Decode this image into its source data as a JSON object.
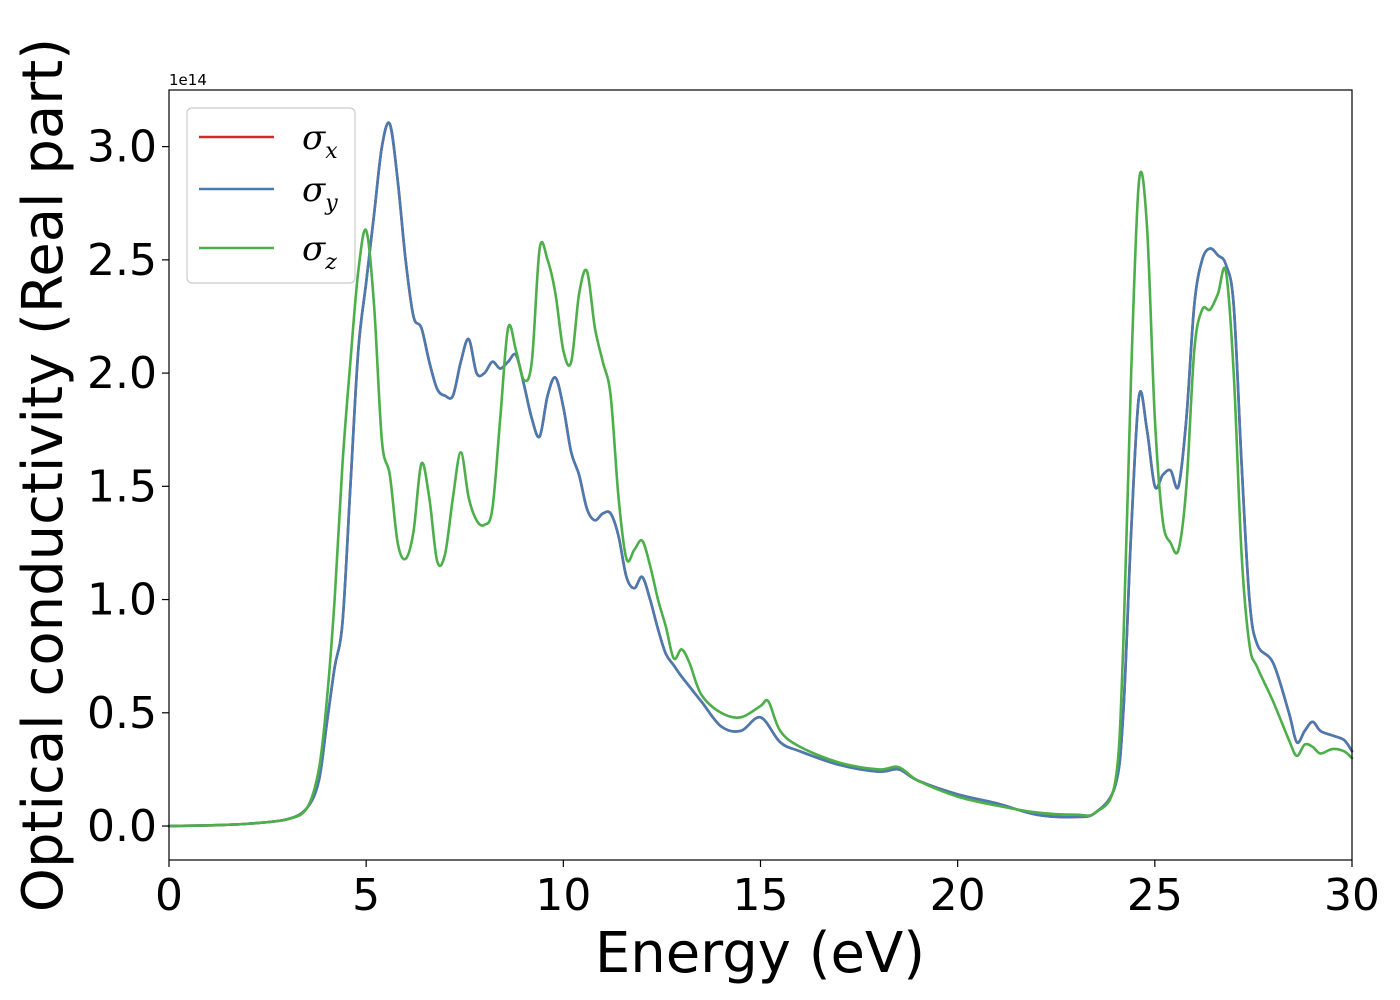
{
  "chart_data": {
    "type": "line",
    "title": "",
    "xlabel": "Energy (eV)",
    "ylabel": "Optical conductivity (Real part)",
    "y_offset_label": "1e14",
    "xlim": [
      0,
      30
    ],
    "ylim": [
      -0.15,
      3.25
    ],
    "xticks": [
      0,
      5,
      10,
      15,
      20,
      25,
      30
    ],
    "xtick_labels": [
      "0",
      "5",
      "10",
      "15",
      "20",
      "25",
      "30"
    ],
    "yticks": [
      0.0,
      0.5,
      1.0,
      1.5,
      2.0,
      2.5,
      3.0
    ],
    "ytick_labels": [
      "0.0",
      "0.5",
      "1.0",
      "1.5",
      "2.0",
      "2.5",
      "3.0"
    ],
    "legend_position": "upper-left",
    "grid": false,
    "series": [
      {
        "name": "σx",
        "symbol": "σ",
        "subscript": "x",
        "color": "#d62728",
        "x": [
          0,
          1,
          2,
          3,
          3.5,
          3.8,
          4.0,
          4.2,
          4.4,
          4.6,
          4.8,
          5.0,
          5.2,
          5.4,
          5.6,
          5.8,
          6.0,
          6.2,
          6.4,
          6.6,
          6.8,
          7.0,
          7.2,
          7.4,
          7.6,
          7.8,
          8.0,
          8.2,
          8.4,
          8.6,
          8.8,
          9.0,
          9.2,
          9.4,
          9.6,
          9.8,
          10.0,
          10.2,
          10.4,
          10.6,
          10.8,
          11.0,
          11.2,
          11.4,
          11.6,
          11.8,
          12.0,
          12.2,
          12.4,
          12.6,
          12.8,
          13.0,
          13.5,
          14.0,
          14.5,
          15.0,
          15.5,
          16.0,
          17.0,
          18.0,
          18.5,
          19.0,
          20.0,
          21.0,
          22.0,
          23.0,
          23.5,
          24.0,
          24.2,
          24.4,
          24.6,
          24.8,
          25.0,
          25.2,
          25.4,
          25.6,
          25.8,
          26.0,
          26.2,
          26.4,
          26.6,
          26.8,
          27.0,
          27.2,
          27.4,
          27.6,
          28.0,
          28.4,
          28.6,
          28.8,
          29.0,
          29.2,
          29.5,
          29.8,
          30.0
        ],
        "values": [
          0,
          0.003,
          0.01,
          0.03,
          0.08,
          0.2,
          0.45,
          0.7,
          0.9,
          1.5,
          2.1,
          2.4,
          2.7,
          3.0,
          3.1,
          2.85,
          2.5,
          2.25,
          2.2,
          2.05,
          1.93,
          1.9,
          1.9,
          2.05,
          2.15,
          2.0,
          2.0,
          2.05,
          2.02,
          2.05,
          2.08,
          1.95,
          1.8,
          1.72,
          1.9,
          1.98,
          1.85,
          1.65,
          1.55,
          1.4,
          1.35,
          1.38,
          1.38,
          1.28,
          1.1,
          1.05,
          1.1,
          1.0,
          0.87,
          0.76,
          0.71,
          0.66,
          0.55,
          0.44,
          0.42,
          0.48,
          0.37,
          0.33,
          0.27,
          0.24,
          0.25,
          0.2,
          0.14,
          0.1,
          0.05,
          0.04,
          0.06,
          0.18,
          0.5,
          1.3,
          1.9,
          1.75,
          1.5,
          1.55,
          1.57,
          1.5,
          1.8,
          2.3,
          2.5,
          2.55,
          2.52,
          2.48,
          2.3,
          1.6,
          1.0,
          0.8,
          0.72,
          0.5,
          0.37,
          0.42,
          0.46,
          0.42,
          0.4,
          0.38,
          0.33
        ]
      },
      {
        "name": "σy",
        "symbol": "σ",
        "subscript": "y",
        "color": "#4a7bb0",
        "x": [
          0,
          1,
          2,
          3,
          3.5,
          3.8,
          4.0,
          4.2,
          4.4,
          4.6,
          4.8,
          5.0,
          5.2,
          5.4,
          5.6,
          5.8,
          6.0,
          6.2,
          6.4,
          6.6,
          6.8,
          7.0,
          7.2,
          7.4,
          7.6,
          7.8,
          8.0,
          8.2,
          8.4,
          8.6,
          8.8,
          9.0,
          9.2,
          9.4,
          9.6,
          9.8,
          10.0,
          10.2,
          10.4,
          10.6,
          10.8,
          11.0,
          11.2,
          11.4,
          11.6,
          11.8,
          12.0,
          12.2,
          12.4,
          12.6,
          12.8,
          13.0,
          13.5,
          14.0,
          14.5,
          15.0,
          15.5,
          16.0,
          17.0,
          18.0,
          18.5,
          19.0,
          20.0,
          21.0,
          22.0,
          23.0,
          23.5,
          24.0,
          24.2,
          24.4,
          24.6,
          24.8,
          25.0,
          25.2,
          25.4,
          25.6,
          25.8,
          26.0,
          26.2,
          26.4,
          26.6,
          26.8,
          27.0,
          27.2,
          27.4,
          27.6,
          28.0,
          28.4,
          28.6,
          28.8,
          29.0,
          29.2,
          29.5,
          29.8,
          30.0
        ],
        "values": [
          0,
          0.003,
          0.01,
          0.03,
          0.08,
          0.2,
          0.45,
          0.7,
          0.9,
          1.5,
          2.1,
          2.4,
          2.7,
          3.0,
          3.1,
          2.85,
          2.5,
          2.25,
          2.2,
          2.05,
          1.93,
          1.9,
          1.9,
          2.05,
          2.15,
          2.0,
          2.0,
          2.05,
          2.02,
          2.05,
          2.08,
          1.95,
          1.8,
          1.72,
          1.9,
          1.98,
          1.85,
          1.65,
          1.55,
          1.4,
          1.35,
          1.38,
          1.38,
          1.28,
          1.1,
          1.05,
          1.1,
          1.0,
          0.87,
          0.76,
          0.71,
          0.66,
          0.55,
          0.44,
          0.42,
          0.48,
          0.37,
          0.33,
          0.27,
          0.24,
          0.25,
          0.2,
          0.14,
          0.1,
          0.05,
          0.04,
          0.06,
          0.18,
          0.5,
          1.3,
          1.9,
          1.75,
          1.5,
          1.55,
          1.57,
          1.5,
          1.8,
          2.3,
          2.5,
          2.55,
          2.52,
          2.48,
          2.3,
          1.6,
          1.0,
          0.8,
          0.72,
          0.5,
          0.37,
          0.42,
          0.46,
          0.42,
          0.4,
          0.38,
          0.33
        ]
      },
      {
        "name": "σz",
        "symbol": "σ",
        "subscript": "z",
        "color": "#4daf4a",
        "x": [
          0,
          1,
          2,
          3,
          3.5,
          3.8,
          4.0,
          4.2,
          4.4,
          4.6,
          4.8,
          5.0,
          5.2,
          5.4,
          5.6,
          5.8,
          6.0,
          6.2,
          6.4,
          6.6,
          6.8,
          7.0,
          7.2,
          7.4,
          7.6,
          7.8,
          8.0,
          8.2,
          8.4,
          8.6,
          8.8,
          9.0,
          9.2,
          9.4,
          9.6,
          9.8,
          10.0,
          10.2,
          10.4,
          10.6,
          10.8,
          11.0,
          11.2,
          11.4,
          11.6,
          11.8,
          12.0,
          12.2,
          12.4,
          12.6,
          12.8,
          13.0,
          13.2,
          13.5,
          14.0,
          14.5,
          15.0,
          15.2,
          15.5,
          16.0,
          17.0,
          18.0,
          18.5,
          19.0,
          20.0,
          21.0,
          22.0,
          23.0,
          23.5,
          24.0,
          24.2,
          24.4,
          24.6,
          24.8,
          25.0,
          25.2,
          25.4,
          25.6,
          25.8,
          26.0,
          26.2,
          26.4,
          26.6,
          26.8,
          27.0,
          27.2,
          27.4,
          27.6,
          28.0,
          28.4,
          28.6,
          28.8,
          29.0,
          29.2,
          29.5,
          29.8,
          30.0
        ],
        "values": [
          0,
          0.003,
          0.01,
          0.03,
          0.08,
          0.25,
          0.55,
          1.0,
          1.6,
          2.05,
          2.45,
          2.63,
          2.3,
          1.7,
          1.55,
          1.25,
          1.18,
          1.3,
          1.6,
          1.45,
          1.17,
          1.2,
          1.45,
          1.65,
          1.45,
          1.35,
          1.33,
          1.4,
          1.8,
          2.2,
          2.1,
          1.97,
          2.05,
          2.55,
          2.5,
          2.35,
          2.1,
          2.05,
          2.35,
          2.45,
          2.2,
          2.05,
          1.9,
          1.45,
          1.18,
          1.22,
          1.26,
          1.15,
          1.0,
          0.88,
          0.74,
          0.78,
          0.72,
          0.58,
          0.5,
          0.48,
          0.53,
          0.55,
          0.42,
          0.35,
          0.28,
          0.25,
          0.26,
          0.2,
          0.13,
          0.09,
          0.06,
          0.05,
          0.06,
          0.2,
          0.8,
          2.0,
          2.85,
          2.65,
          1.8,
          1.35,
          1.25,
          1.22,
          1.5,
          2.1,
          2.28,
          2.28,
          2.35,
          2.45,
          2.0,
          1.2,
          0.8,
          0.7,
          0.55,
          0.38,
          0.31,
          0.36,
          0.35,
          0.32,
          0.34,
          0.33,
          0.3
        ]
      }
    ]
  }
}
